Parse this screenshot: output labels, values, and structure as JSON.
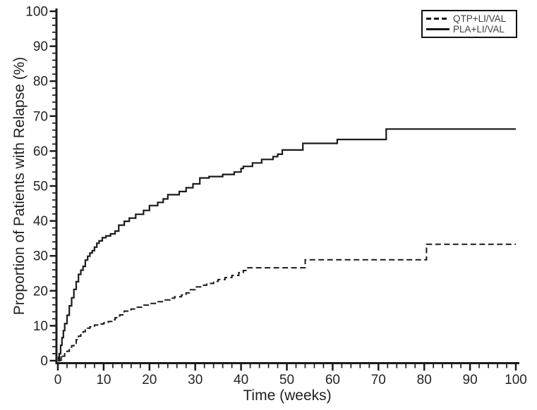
{
  "figure": {
    "background": "#ffffff",
    "axis_color": "#1a1a1a",
    "tick_label_color": "#242424",
    "axis_title_color": "#1f1f1f",
    "legend_text_color": "#3f3f3f"
  },
  "chart_data": {
    "type": "line",
    "subtype": "kaplan-meier-step",
    "title": "",
    "xlabel": "Time (weeks)",
    "ylabel": "Proportion of Patients with Relapse (%)",
    "xlim": [
      0,
      100
    ],
    "ylim": [
      0,
      100
    ],
    "x_major_ticks": [
      0,
      10,
      20,
      30,
      40,
      50,
      60,
      70,
      80,
      90,
      100
    ],
    "x_minor_tick_interval": 2,
    "y_major_ticks": [
      0,
      10,
      20,
      30,
      40,
      50,
      60,
      70,
      80,
      90,
      100
    ],
    "y_minor_tick_interval": 2,
    "grid": false,
    "legend_position": "top-right",
    "series": [
      {
        "name": "QTP+LI/VAL",
        "line_style": "dashed",
        "color": "#1a1a1a",
        "points": [
          [
            0,
            0
          ],
          [
            0.5,
            0.7
          ],
          [
            1,
            1.3
          ],
          [
            1.5,
            2
          ],
          [
            2,
            2.7
          ],
          [
            2.5,
            3.4
          ],
          [
            3,
            4.3
          ],
          [
            3.5,
            5
          ],
          [
            4,
            6
          ],
          [
            4.5,
            7
          ],
          [
            5,
            7.7
          ],
          [
            5.5,
            8.3
          ],
          [
            6,
            8.8
          ],
          [
            6.5,
            9.3
          ],
          [
            7,
            9.7
          ],
          [
            8,
            10.2
          ],
          [
            9,
            10.5
          ],
          [
            10,
            10.8
          ],
          [
            11,
            11.2
          ],
          [
            12,
            11.7
          ],
          [
            12.5,
            12.3
          ],
          [
            13.5,
            13.1
          ],
          [
            14.5,
            14.2
          ],
          [
            16,
            14.8
          ],
          [
            17.2,
            15.3
          ],
          [
            18.5,
            15.9
          ],
          [
            20,
            16.4
          ],
          [
            21.5,
            16.9
          ],
          [
            23,
            17.4
          ],
          [
            24.5,
            17.9
          ],
          [
            25.5,
            18.3
          ],
          [
            27,
            18.8
          ],
          [
            28,
            19.4
          ],
          [
            28.7,
            20.3
          ],
          [
            30,
            21.1
          ],
          [
            31.5,
            21.6
          ],
          [
            32.5,
            22.1
          ],
          [
            34,
            22.7
          ],
          [
            35,
            23.2
          ],
          [
            36.5,
            23.8
          ],
          [
            38,
            24.4
          ],
          [
            39.5,
            25.2
          ],
          [
            40.5,
            25.8
          ],
          [
            41.5,
            26.6
          ],
          [
            54,
            28.9
          ],
          [
            80.5,
            33.3
          ],
          [
            100,
            33.3
          ]
        ]
      },
      {
        "name": "PLA+LI/VAL",
        "line_style": "solid",
        "color": "#1a1a1a",
        "points": [
          [
            0,
            0
          ],
          [
            0.3,
            2
          ],
          [
            0.6,
            4.4
          ],
          [
            0.9,
            6.6
          ],
          [
            1.2,
            8.6
          ],
          [
            1.5,
            10.6
          ],
          [
            2,
            13
          ],
          [
            2.5,
            15.7
          ],
          [
            3,
            18
          ],
          [
            3.5,
            20.4
          ],
          [
            4,
            22.6
          ],
          [
            4.5,
            24.7
          ],
          [
            5,
            25.9
          ],
          [
            5.5,
            27
          ],
          [
            6,
            28.8
          ],
          [
            6.5,
            29.9
          ],
          [
            7,
            30.8
          ],
          [
            7.5,
            31.5
          ],
          [
            8,
            32.5
          ],
          [
            8.5,
            33.6
          ],
          [
            9,
            34.3
          ],
          [
            9.7,
            35.2
          ],
          [
            10.5,
            35.7
          ],
          [
            11.5,
            36.3
          ],
          [
            12.5,
            37.1
          ],
          [
            13.3,
            38.8
          ],
          [
            14.5,
            39.9
          ],
          [
            15.6,
            40.8
          ],
          [
            17,
            41.9
          ],
          [
            18.7,
            43
          ],
          [
            20,
            44.4
          ],
          [
            21.8,
            45.3
          ],
          [
            23,
            46.3
          ],
          [
            24,
            47.5
          ],
          [
            26.5,
            48.4
          ],
          [
            28,
            49.5
          ],
          [
            29.5,
            50.6
          ],
          [
            31,
            52.3
          ],
          [
            33,
            52.7
          ],
          [
            36,
            53.3
          ],
          [
            38.5,
            54
          ],
          [
            40,
            55
          ],
          [
            40.5,
            55.6
          ],
          [
            42.5,
            56.6
          ],
          [
            44.5,
            57.6
          ],
          [
            47,
            58.4
          ],
          [
            48,
            59.1
          ],
          [
            49,
            60.3
          ],
          [
            53.5,
            62.2
          ],
          [
            61,
            63.3
          ],
          [
            71.7,
            66.3
          ],
          [
            100,
            66.3
          ]
        ]
      }
    ]
  }
}
